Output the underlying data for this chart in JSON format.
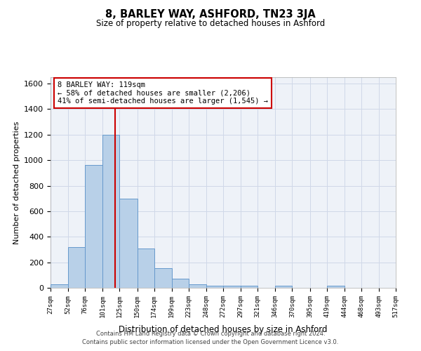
{
  "title": "8, BARLEY WAY, ASHFORD, TN23 3JA",
  "subtitle": "Size of property relative to detached houses in Ashford",
  "xlabel": "Distribution of detached houses by size in Ashford",
  "ylabel": "Number of detached properties",
  "bar_color": "#b8d0e8",
  "bar_edge_color": "#6699cc",
  "grid_color": "#d0d8e8",
  "background_color": "#eef2f8",
  "vline_x": 119,
  "vline_color": "#cc0000",
  "annotation_line1": "8 BARLEY WAY: 119sqm",
  "annotation_line2": "← 58% of detached houses are smaller (2,206)",
  "annotation_line3": "41% of semi-detached houses are larger (1,545) →",
  "annotation_box_color": "#ffffff",
  "annotation_box_edge": "#cc0000",
  "footer_text": "Contains HM Land Registry data © Crown copyright and database right 2024.\nContains public sector information licensed under the Open Government Licence v3.0.",
  "bin_edges": [
    27,
    52,
    76,
    101,
    125,
    150,
    174,
    199,
    223,
    248,
    272,
    297,
    321,
    346,
    370,
    395,
    419,
    444,
    468,
    493,
    517
  ],
  "bar_heights": [
    25,
    320,
    960,
    1200,
    700,
    310,
    155,
    70,
    25,
    15,
    15,
    15,
    0,
    15,
    0,
    0,
    15,
    0,
    0,
    0
  ],
  "ylim": [
    0,
    1650
  ],
  "yticks": [
    0,
    200,
    400,
    600,
    800,
    1000,
    1200,
    1400,
    1600
  ]
}
